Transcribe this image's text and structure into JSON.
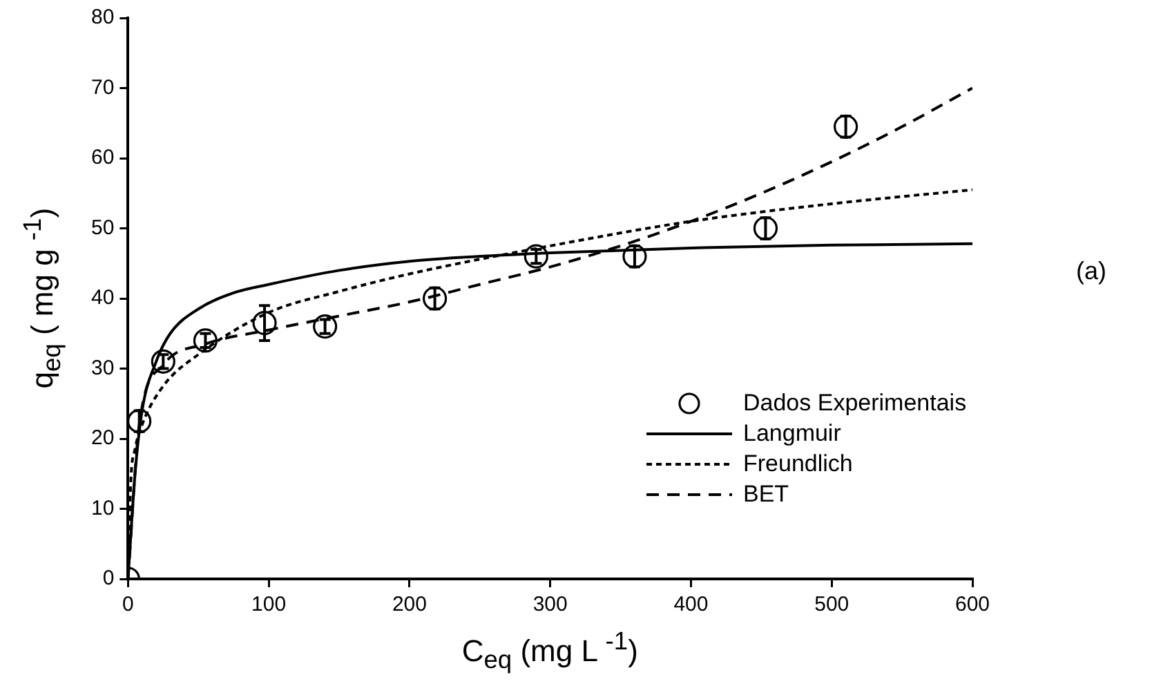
{
  "chart_data": {
    "type": "scatter",
    "xlabel": "C$_{eq}$ (mg  L $^{-1}$)",
    "ylabel": "q$_{eq}$ ( mg g $^{-1}$)",
    "annotations": [
      "(a)"
    ],
    "xlim": [
      0,
      600
    ],
    "xticks": [
      0,
      100,
      200,
      300,
      400,
      500,
      600
    ],
    "ylim": [
      0,
      80
    ],
    "yticks": [
      0,
      10,
      20,
      30,
      40,
      50,
      60,
      70,
      80
    ],
    "grid": false,
    "legend": "bottom right",
    "series": [
      {
        "name": "Dados Experimentais",
        "marker": "circle",
        "color": "#000000",
        "x": [
          0,
          8,
          25,
          55,
          97,
          140,
          218,
          290,
          360,
          453,
          510
        ],
        "values": [
          0,
          22.5,
          31,
          34,
          36.5,
          36,
          40,
          46,
          46,
          50,
          64.5
        ],
        "errors": [
          null,
          1.5,
          1,
          1,
          2.5,
          1,
          1.5,
          1,
          1.5,
          1.5,
          1.5
        ]
      },
      {
        "name": "Langmuir",
        "type": "line",
        "marker": "none",
        "line_style": "solid",
        "color": "#000000",
        "x": [
          0,
          5,
          10,
          20,
          30,
          50,
          75,
          100,
          150,
          200,
          250,
          300,
          400,
          500,
          600
        ],
        "values": [
          0,
          15,
          24,
          31,
          35,
          38.5,
          40.8,
          42,
          44,
          45.3,
          46,
          46.5,
          47.2,
          47.6,
          47.8
        ]
      },
      {
        "name": "Freundlich",
        "type": "line",
        "marker": "none",
        "line_style": "dotted",
        "color": "#000000",
        "x": [
          0,
          2,
          5,
          10,
          25,
          50,
          100,
          150,
          200,
          300,
          400,
          500,
          600
        ],
        "values": [
          0,
          14,
          18.5,
          22,
          27.5,
          32,
          38,
          41,
          43.5,
          47.5,
          51,
          53.5,
          55.5
        ]
      },
      {
        "name": "BET",
        "type": "line",
        "marker": "none",
        "line_style": "dashed",
        "color": "#000000",
        "x": [
          0,
          8,
          25,
          55,
          100,
          150,
          200,
          250,
          300,
          350,
          400,
          450,
          500,
          550,
          600
        ],
        "values": [
          0,
          22,
          30.5,
          33.5,
          35.5,
          37.5,
          39.5,
          42,
          44.5,
          47.5,
          51,
          55,
          59.5,
          64.5,
          70
        ]
      }
    ]
  }
}
